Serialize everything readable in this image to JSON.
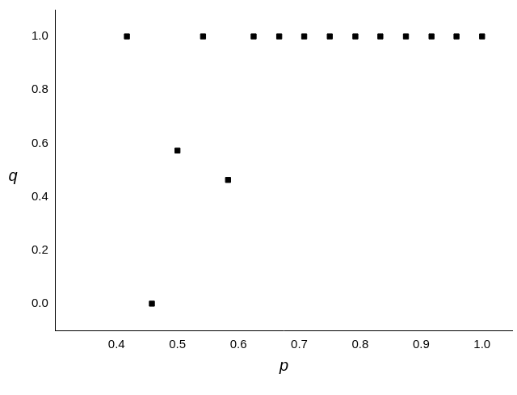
{
  "chart_data": {
    "type": "scatter",
    "x_label": "p",
    "y_label": "q",
    "x": [
      0.417,
      0.458,
      0.5,
      0.542,
      0.583,
      0.625,
      0.667,
      0.708,
      0.75,
      0.792,
      0.833,
      0.875,
      0.917,
      0.958,
      1.0
    ],
    "values": [
      1.0,
      0.0,
      0.573,
      1.0,
      0.463,
      1.0,
      1.0,
      1.0,
      1.0,
      1.0,
      1.0,
      1.0,
      1.0,
      1.0,
      1.0
    ],
    "color": "#000000",
    "marker": "square",
    "xlim": [
      0.3,
      1.05
    ],
    "xticks": [
      0.4,
      0.5,
      0.6,
      0.7,
      0.8,
      0.9,
      {
        "value": 1.0,
        "label": "1.0"
      }
    ],
    "ylim": [
      -0.1,
      1.1
    ],
    "yticks": [
      {
        "value": 0.0,
        "label": "0.0"
      },
      0.2,
      0.4,
      0.6,
      0.8,
      {
        "value": 1.0,
        "label": "1.0"
      }
    ],
    "grid": false
  }
}
